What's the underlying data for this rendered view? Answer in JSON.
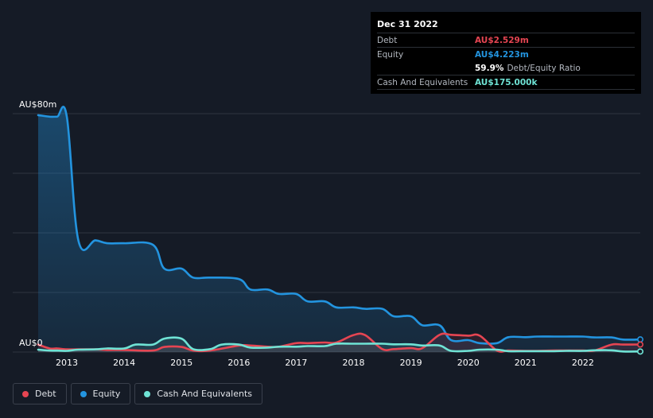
{
  "colors": {
    "debt": "#e64552",
    "equity": "#2394df",
    "cash": "#6fe3d5",
    "grid": "#2e3440",
    "axis_text": "#ffffff"
  },
  "tooltip": {
    "date": "Dec 31 2022",
    "debt_label": "Debt",
    "debt_value": "AU$2.529m",
    "equity_label": "Equity",
    "equity_value": "AU$4.223m",
    "ratio_value": "59.9%",
    "ratio_label": "Debt/Equity Ratio",
    "cash_label": "Cash And Equivalents",
    "cash_value": "AU$175.000k"
  },
  "legend": {
    "debt": "Debt",
    "equity": "Equity",
    "cash": "Cash And Equivalents"
  },
  "chart_data": {
    "type": "line",
    "title": "",
    "xlabel": "",
    "ylabel": "",
    "y_top_label": "AU$80m",
    "y_bottom_label": "AU$0",
    "ylim": [
      0,
      80
    ],
    "xlim": [
      2012.5,
      2023.0
    ],
    "x_ticks": [
      "2013",
      "2014",
      "2015",
      "2016",
      "2017",
      "2018",
      "2019",
      "2020",
      "2021",
      "2022"
    ],
    "x_tick_values": [
      2013,
      2014,
      2015,
      2016,
      2017,
      2018,
      2019,
      2020,
      2021,
      2022
    ],
    "series": [
      {
        "name": "Equity",
        "color_key": "equity",
        "x": [
          2012.5,
          2012.7,
          2012.83,
          2013.0,
          2013.2,
          2013.5,
          2013.7,
          2014.0,
          2014.5,
          2014.7,
          2015.0,
          2015.2,
          2015.5,
          2016.0,
          2016.2,
          2016.5,
          2016.7,
          2017.0,
          2017.2,
          2017.5,
          2017.7,
          2018.0,
          2018.2,
          2018.5,
          2018.7,
          2019.0,
          2019.2,
          2019.5,
          2019.7,
          2020.0,
          2020.2,
          2020.5,
          2020.7,
          2021.0,
          2021.2,
          2021.5,
          2021.7,
          2022.0,
          2022.2,
          2022.5,
          2022.7,
          2023.0
        ],
        "values": [
          79.5,
          79.0,
          79.0,
          79.0,
          37.5,
          37.5,
          36.5,
          36.5,
          36.0,
          28.0,
          28.0,
          25.0,
          25.0,
          24.5,
          21.0,
          21.0,
          19.5,
          19.5,
          17.0,
          17.0,
          15.0,
          15.0,
          14.5,
          14.5,
          12.0,
          12.0,
          9.0,
          9.0,
          4.0,
          4.0,
          3.0,
          3.0,
          5.0,
          5.0,
          5.2,
          5.2,
          5.2,
          5.2,
          4.9,
          4.9,
          4.2,
          4.223
        ]
      },
      {
        "name": "Debt",
        "color_key": "debt",
        "x": [
          2012.5,
          2012.7,
          2012.83,
          2013.0,
          2013.2,
          2013.5,
          2013.7,
          2014.0,
          2014.5,
          2014.7,
          2015.0,
          2015.2,
          2015.5,
          2016.0,
          2016.2,
          2016.5,
          2016.7,
          2017.0,
          2017.2,
          2017.5,
          2017.7,
          2018.0,
          2018.2,
          2018.5,
          2018.7,
          2019.0,
          2019.2,
          2019.5,
          2019.7,
          2020.0,
          2020.2,
          2020.5,
          2020.7,
          2021.0,
          2021.2,
          2021.5,
          2021.7,
          2022.0,
          2022.2,
          2022.5,
          2022.7,
          2023.0
        ],
        "values": [
          2.5,
          1.2,
          1.2,
          0.9,
          0.9,
          0.9,
          0.7,
          0.7,
          0.5,
          1.7,
          1.7,
          0.5,
          0.5,
          2.2,
          2.2,
          1.8,
          1.8,
          3.0,
          3.0,
          3.2,
          3.2,
          5.7,
          5.7,
          1.0,
          1.0,
          1.3,
          1.3,
          5.8,
          5.8,
          5.5,
          5.5,
          0.5,
          0.5,
          0.4,
          0.4,
          0.5,
          0.5,
          0.5,
          0.5,
          2.5,
          2.5,
          2.529
        ]
      },
      {
        "name": "Cash And Equivalents",
        "color_key": "cash",
        "x": [
          2012.5,
          2012.7,
          2012.83,
          2013.0,
          2013.2,
          2013.5,
          2013.7,
          2014.0,
          2014.2,
          2014.5,
          2014.7,
          2015.0,
          2015.2,
          2015.5,
          2015.7,
          2016.0,
          2016.2,
          2016.5,
          2016.7,
          2017.0,
          2017.2,
          2017.5,
          2017.7,
          2018.0,
          2018.2,
          2018.5,
          2018.7,
          2019.0,
          2019.2,
          2019.5,
          2019.7,
          2020.0,
          2020.2,
          2020.5,
          2020.7,
          2021.0,
          2021.2,
          2021.5,
          2021.7,
          2022.0,
          2022.2,
          2022.5,
          2022.7,
          2023.0
        ],
        "values": [
          0.8,
          0.5,
          0.5,
          0.4,
          0.8,
          0.9,
          1.2,
          1.2,
          2.5,
          2.5,
          4.5,
          4.5,
          1.0,
          1.0,
          2.5,
          2.5,
          1.5,
          1.5,
          1.8,
          1.8,
          2.0,
          2.0,
          2.8,
          2.8,
          2.8,
          2.8,
          2.6,
          2.6,
          2.2,
          2.2,
          0.4,
          0.4,
          0.8,
          0.8,
          0.3,
          0.3,
          0.3,
          0.3,
          0.4,
          0.4,
          0.6,
          0.6,
          0.175,
          0.175
        ]
      }
    ],
    "legend_position": "bottom-left",
    "grid": true
  }
}
